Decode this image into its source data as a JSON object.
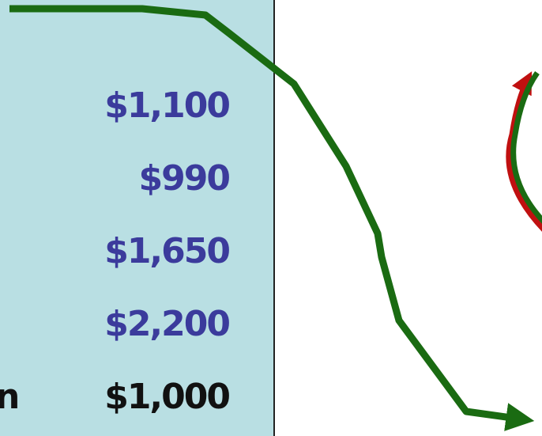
{
  "panel": {
    "amounts": [
      "$1,100",
      "$990",
      "$1,650",
      "$2,200",
      "$1,000"
    ],
    "labels": [
      "n"
    ]
  }
}
